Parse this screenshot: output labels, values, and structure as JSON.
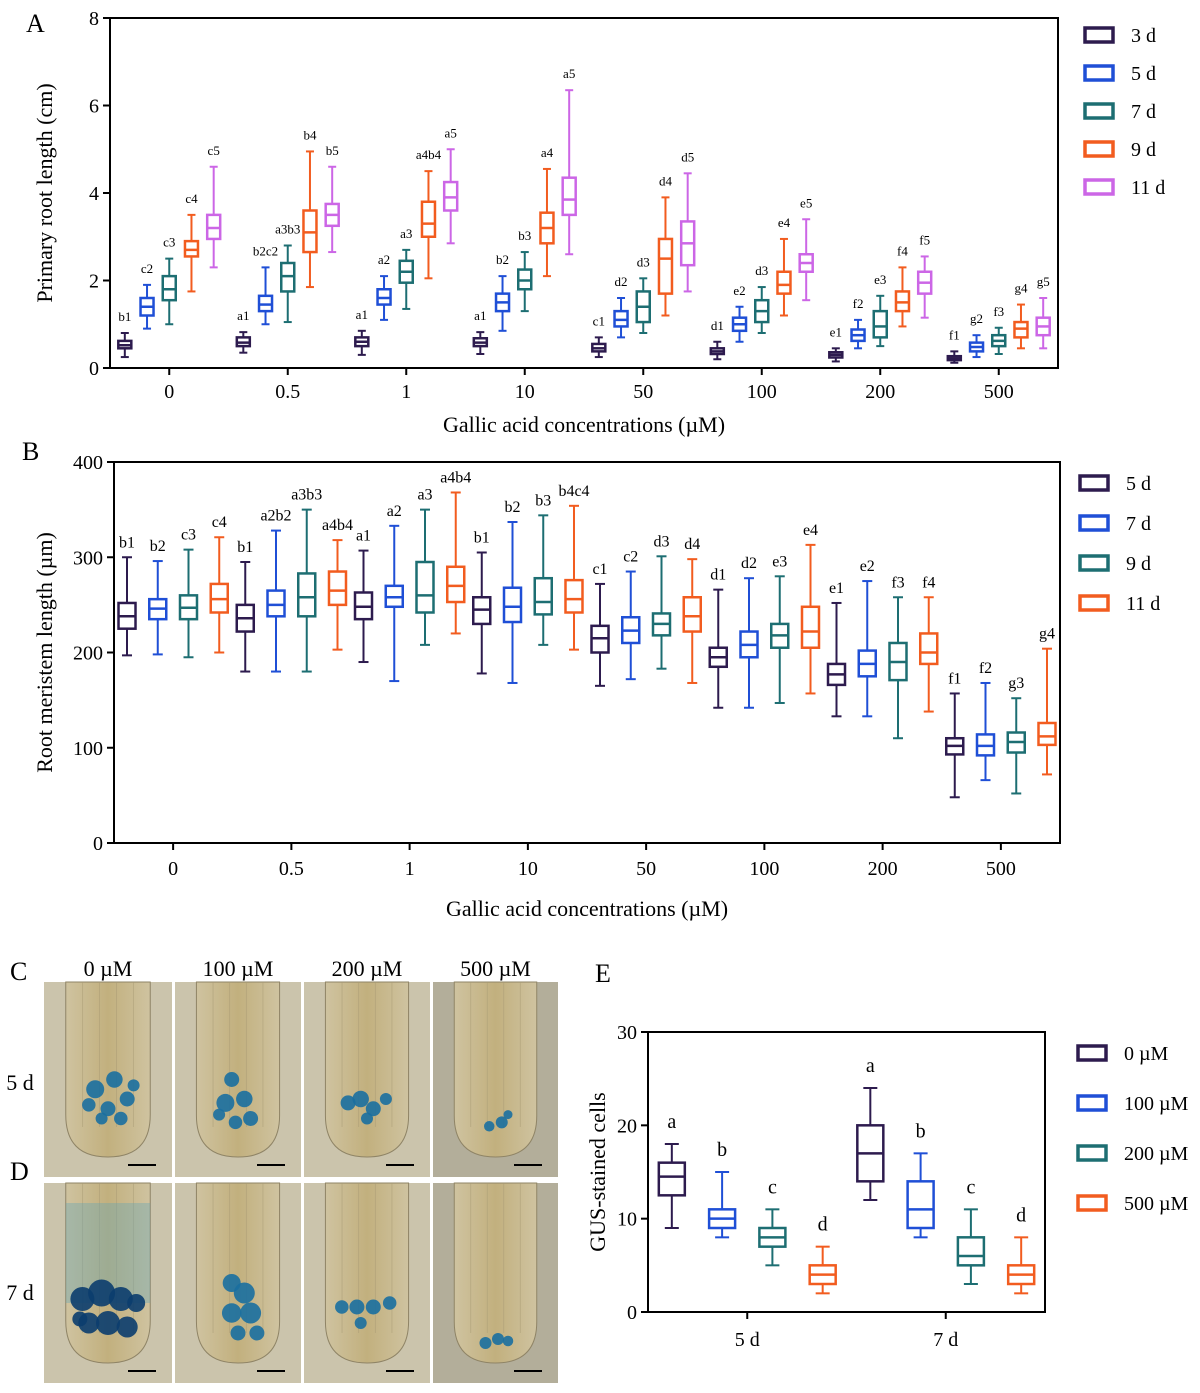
{
  "chart_data": [
    {
      "panel": "A",
      "type": "box",
      "ylabel": "Primary root length (cm)",
      "xlabel": "Gallic acid concentrations (µM)",
      "ylim": [
        0,
        8
      ],
      "yticks": [
        "0",
        "2",
        "4",
        "6",
        "8"
      ],
      "categories": [
        "0",
        "0.5",
        "1",
        "10",
        "50",
        "100",
        "200",
        "500"
      ],
      "series": [
        {
          "name": "3 d",
          "color": "#2d1b4e",
          "boxes": [
            {
              "min": 0.25,
              "q1": 0.45,
              "med": 0.52,
              "q3": 0.62,
              "max": 0.8,
              "sig": "b1"
            },
            {
              "min": 0.35,
              "q1": 0.5,
              "med": 0.58,
              "q3": 0.7,
              "max": 0.82,
              "sig": "a1"
            },
            {
              "min": 0.3,
              "q1": 0.5,
              "med": 0.6,
              "q3": 0.7,
              "max": 0.85,
              "sig": "a1"
            },
            {
              "min": 0.32,
              "q1": 0.5,
              "med": 0.58,
              "q3": 0.68,
              "max": 0.82,
              "sig": "a1"
            },
            {
              "min": 0.25,
              "q1": 0.38,
              "med": 0.45,
              "q3": 0.55,
              "max": 0.7,
              "sig": "c1"
            },
            {
              "min": 0.2,
              "q1": 0.32,
              "med": 0.38,
              "q3": 0.45,
              "max": 0.6,
              "sig": "d1"
            },
            {
              "min": 0.15,
              "q1": 0.24,
              "med": 0.3,
              "q3": 0.36,
              "max": 0.45,
              "sig": "e1"
            },
            {
              "min": 0.12,
              "q1": 0.18,
              "med": 0.22,
              "q3": 0.27,
              "max": 0.38,
              "sig": "f1"
            }
          ]
        },
        {
          "name": "5 d",
          "color": "#1f4fd6",
          "boxes": [
            {
              "min": 0.9,
              "q1": 1.2,
              "med": 1.4,
              "q3": 1.6,
              "max": 1.9,
              "sig": "c2"
            },
            {
              "min": 1.0,
              "q1": 1.3,
              "med": 1.45,
              "q3": 1.65,
              "max": 2.3,
              "sig": "b2c2"
            },
            {
              "min": 1.1,
              "q1": 1.45,
              "med": 1.6,
              "q3": 1.8,
              "max": 2.1,
              "sig": "a2"
            },
            {
              "min": 0.85,
              "q1": 1.3,
              "med": 1.5,
              "q3": 1.7,
              "max": 2.1,
              "sig": "b2"
            },
            {
              "min": 0.7,
              "q1": 0.95,
              "med": 1.1,
              "q3": 1.3,
              "max": 1.6,
              "sig": "d2"
            },
            {
              "min": 0.6,
              "q1": 0.85,
              "med": 1.0,
              "q3": 1.15,
              "max": 1.4,
              "sig": "e2"
            },
            {
              "min": 0.45,
              "q1": 0.62,
              "med": 0.75,
              "q3": 0.88,
              "max": 1.1,
              "sig": "f2"
            },
            {
              "min": 0.25,
              "q1": 0.38,
              "med": 0.48,
              "q3": 0.58,
              "max": 0.75,
              "sig": "g2"
            }
          ]
        },
        {
          "name": "7 d",
          "color": "#1d6e72",
          "boxes": [
            {
              "min": 1.0,
              "q1": 1.55,
              "med": 1.8,
              "q3": 2.1,
              "max": 2.5,
              "sig": "c3"
            },
            {
              "min": 1.05,
              "q1": 1.75,
              "med": 2.1,
              "q3": 2.4,
              "max": 2.8,
              "sig": "a3b3"
            },
            {
              "min": 1.35,
              "q1": 1.95,
              "med": 2.2,
              "q3": 2.45,
              "max": 2.7,
              "sig": "a3"
            },
            {
              "min": 1.3,
              "q1": 1.8,
              "med": 2.0,
              "q3": 2.25,
              "max": 2.65,
              "sig": "b3"
            },
            {
              "min": 0.8,
              "q1": 1.05,
              "med": 1.4,
              "q3": 1.75,
              "max": 2.05,
              "sig": "d3"
            },
            {
              "min": 0.8,
              "q1": 1.05,
              "med": 1.3,
              "q3": 1.55,
              "max": 1.85,
              "sig": "d3"
            },
            {
              "min": 0.5,
              "q1": 0.7,
              "med": 0.95,
              "q3": 1.3,
              "max": 1.65,
              "sig": "e3"
            },
            {
              "min": 0.32,
              "q1": 0.5,
              "med": 0.62,
              "q3": 0.75,
              "max": 0.92,
              "sig": "f3"
            }
          ]
        },
        {
          "name": "9 d",
          "color": "#f25c1f",
          "boxes": [
            {
              "min": 1.75,
              "q1": 2.55,
              "med": 2.7,
              "q3": 2.9,
              "max": 3.5,
              "sig": "c4"
            },
            {
              "min": 1.85,
              "q1": 2.65,
              "med": 3.1,
              "q3": 3.6,
              "max": 4.95,
              "sig": "b4"
            },
            {
              "min": 2.05,
              "q1": 3.0,
              "med": 3.3,
              "q3": 3.8,
              "max": 4.5,
              "sig": "a4b4"
            },
            {
              "min": 2.1,
              "q1": 2.85,
              "med": 3.2,
              "q3": 3.55,
              "max": 4.55,
              "sig": "a4"
            },
            {
              "min": 1.2,
              "q1": 1.7,
              "med": 2.5,
              "q3": 2.95,
              "max": 3.9,
              "sig": "d4"
            },
            {
              "min": 1.2,
              "q1": 1.7,
              "med": 1.9,
              "q3": 2.2,
              "max": 2.95,
              "sig": "e4"
            },
            {
              "min": 0.95,
              "q1": 1.3,
              "med": 1.5,
              "q3": 1.75,
              "max": 2.3,
              "sig": "f4"
            },
            {
              "min": 0.45,
              "q1": 0.7,
              "med": 0.9,
              "q3": 1.05,
              "max": 1.45,
              "sig": "g4"
            }
          ]
        },
        {
          "name": "11 d",
          "color": "#cc66e6",
          "boxes": [
            {
              "min": 2.3,
              "q1": 2.95,
              "med": 3.2,
              "q3": 3.5,
              "max": 4.6,
              "sig": "c5"
            },
            {
              "min": 2.65,
              "q1": 3.25,
              "med": 3.5,
              "q3": 3.75,
              "max": 4.6,
              "sig": "b5"
            },
            {
              "min": 2.85,
              "q1": 3.6,
              "med": 3.9,
              "q3": 4.25,
              "max": 5.0,
              "sig": "a5"
            },
            {
              "min": 2.6,
              "q1": 3.5,
              "med": 3.85,
              "q3": 4.35,
              "max": 6.35,
              "sig": "a5"
            },
            {
              "min": 1.75,
              "q1": 2.35,
              "med": 2.85,
              "q3": 3.35,
              "max": 4.45,
              "sig": "d5"
            },
            {
              "min": 1.55,
              "q1": 2.2,
              "med": 2.4,
              "q3": 2.6,
              "max": 3.4,
              "sig": "e5"
            },
            {
              "min": 1.15,
              "q1": 1.7,
              "med": 1.95,
              "q3": 2.2,
              "max": 2.55,
              "sig": "f5"
            },
            {
              "min": 0.45,
              "q1": 0.75,
              "med": 0.95,
              "q3": 1.15,
              "max": 1.6,
              "sig": "g5"
            }
          ]
        }
      ]
    },
    {
      "panel": "B",
      "type": "box",
      "ylabel": "Root meristem length (µm)",
      "xlabel": "Gallic acid concentrations (µM)",
      "ylim": [
        0,
        400
      ],
      "yticks": [
        "0",
        "100",
        "200",
        "300",
        "400"
      ],
      "categories": [
        "0",
        "0.5",
        "1",
        "10",
        "50",
        "100",
        "200",
        "500"
      ],
      "series": [
        {
          "name": "5 d",
          "color": "#2d1b4e",
          "boxes": [
            {
              "min": 197,
              "q1": 225,
              "med": 238,
              "q3": 252,
              "max": 300,
              "sig": "b1"
            },
            {
              "min": 180,
              "q1": 222,
              "med": 236,
              "q3": 250,
              "max": 295,
              "sig": "b1"
            },
            {
              "min": 190,
              "q1": 235,
              "med": 248,
              "q3": 263,
              "max": 307,
              "sig": "a1"
            },
            {
              "min": 178,
              "q1": 230,
              "med": 245,
              "q3": 258,
              "max": 305,
              "sig": "b1"
            },
            {
              "min": 165,
              "q1": 200,
              "med": 215,
              "q3": 228,
              "max": 272,
              "sig": "c1"
            },
            {
              "min": 142,
              "q1": 185,
              "med": 195,
              "q3": 205,
              "max": 266,
              "sig": "d1"
            },
            {
              "min": 133,
              "q1": 166,
              "med": 177,
              "q3": 188,
              "max": 252,
              "sig": "e1"
            },
            {
              "min": 48,
              "q1": 93,
              "med": 102,
              "q3": 110,
              "max": 157,
              "sig": "f1"
            }
          ]
        },
        {
          "name": "7 d",
          "color": "#1f4fd6",
          "boxes": [
            {
              "min": 198,
              "q1": 235,
              "med": 246,
              "q3": 256,
              "max": 296,
              "sig": "b2"
            },
            {
              "min": 180,
              "q1": 238,
              "med": 250,
              "q3": 265,
              "max": 328,
              "sig": "a2b2"
            },
            {
              "min": 170,
              "q1": 248,
              "med": 258,
              "q3": 270,
              "max": 333,
              "sig": "a2"
            },
            {
              "min": 168,
              "q1": 232,
              "med": 248,
              "q3": 268,
              "max": 337,
              "sig": "b2"
            },
            {
              "min": 172,
              "q1": 210,
              "med": 223,
              "q3": 237,
              "max": 285,
              "sig": "c2"
            },
            {
              "min": 142,
              "q1": 195,
              "med": 208,
              "q3": 222,
              "max": 278,
              "sig": "d2"
            },
            {
              "min": 133,
              "q1": 175,
              "med": 188,
              "q3": 202,
              "max": 275,
              "sig": "e2"
            },
            {
              "min": 66,
              "q1": 92,
              "med": 102,
              "q3": 114,
              "max": 168,
              "sig": "f2"
            }
          ]
        },
        {
          "name": "9 d",
          "color": "#1d6e72",
          "boxes": [
            {
              "min": 195,
              "q1": 235,
              "med": 247,
              "q3": 260,
              "max": 308,
              "sig": "c3"
            },
            {
              "min": 180,
              "q1": 238,
              "med": 258,
              "q3": 283,
              "max": 350,
              "sig": "a3b3"
            },
            {
              "min": 208,
              "q1": 242,
              "med": 260,
              "q3": 295,
              "max": 350,
              "sig": "a3"
            },
            {
              "min": 208,
              "q1": 240,
              "med": 253,
              "q3": 278,
              "max": 344,
              "sig": "b3"
            },
            {
              "min": 183,
              "q1": 218,
              "med": 230,
              "q3": 241,
              "max": 301,
              "sig": "d3"
            },
            {
              "min": 147,
              "q1": 205,
              "med": 218,
              "q3": 230,
              "max": 280,
              "sig": "e3"
            },
            {
              "min": 110,
              "q1": 171,
              "med": 190,
              "q3": 210,
              "max": 258,
              "sig": "f3"
            },
            {
              "min": 52,
              "q1": 95,
              "med": 106,
              "q3": 116,
              "max": 152,
              "sig": "g3"
            }
          ]
        },
        {
          "name": "11 d",
          "color": "#f25c1f",
          "boxes": [
            {
              "min": 200,
              "q1": 242,
              "med": 256,
              "q3": 272,
              "max": 321,
              "sig": "c4"
            },
            {
              "min": 203,
              "q1": 250,
              "med": 265,
              "q3": 285,
              "max": 318,
              "sig": "a4b4"
            },
            {
              "min": 220,
              "q1": 253,
              "med": 270,
              "q3": 290,
              "max": 368,
              "sig": "a4b4"
            },
            {
              "min": 203,
              "q1": 242,
              "med": 256,
              "q3": 276,
              "max": 354,
              "sig": "b4c4"
            },
            {
              "min": 168,
              "q1": 222,
              "med": 238,
              "q3": 258,
              "max": 298,
              "sig": "d4"
            },
            {
              "min": 157,
              "q1": 205,
              "med": 222,
              "q3": 248,
              "max": 313,
              "sig": "e4"
            },
            {
              "min": 138,
              "q1": 188,
              "med": 200,
              "q3": 220,
              "max": 258,
              "sig": "f4"
            },
            {
              "min": 72,
              "q1": 103,
              "med": 112,
              "q3": 126,
              "max": 204,
              "sig": "g4"
            }
          ]
        }
      ]
    },
    {
      "panel": "E",
      "type": "box",
      "ylabel": "GUS-stained cells",
      "xlabel": "",
      "ylim": [
        0,
        30
      ],
      "yticks": [
        "0",
        "10",
        "20",
        "30"
      ],
      "categories": [
        "5 d",
        "7 d"
      ],
      "series": [
        {
          "name": "0 µM",
          "color": "#2d1b4e",
          "boxes": [
            {
              "min": 9,
              "q1": 12.5,
              "med": 14.5,
              "q3": 16,
              "max": 18,
              "sig": "a"
            },
            {
              "min": 12,
              "q1": 14,
              "med": 17,
              "q3": 20,
              "max": 24,
              "sig": "a"
            }
          ]
        },
        {
          "name": "100 µM",
          "color": "#1f4fd6",
          "boxes": [
            {
              "min": 8,
              "q1": 9,
              "med": 10,
              "q3": 11,
              "max": 15,
              "sig": "b"
            },
            {
              "min": 8,
              "q1": 9,
              "med": 11,
              "q3": 14,
              "max": 17,
              "sig": "b"
            }
          ]
        },
        {
          "name": "200 µM",
          "color": "#1d6e72",
          "boxes": [
            {
              "min": 5,
              "q1": 7,
              "med": 8,
              "q3": 9,
              "max": 11,
              "sig": "c"
            },
            {
              "min": 3,
              "q1": 5,
              "med": 6,
              "q3": 8,
              "max": 11,
              "sig": "c"
            }
          ]
        },
        {
          "name": "500 µM",
          "color": "#f25c1f",
          "boxes": [
            {
              "min": 2,
              "q1": 3,
              "med": 4,
              "q3": 5,
              "max": 7,
              "sig": "d"
            },
            {
              "min": 2,
              "q1": 3,
              "med": 4,
              "q3": 5,
              "max": 8,
              "sig": "d"
            }
          ]
        }
      ]
    }
  ],
  "panels": {
    "a_letter": "A",
    "b_letter": "B",
    "c_letter": "C",
    "d_letter": "D",
    "e_letter": "E"
  },
  "photos": {
    "columns": [
      "0 µM",
      "100 µM",
      "200 µM",
      "500 µM"
    ],
    "rows": [
      "5 d",
      "7 d"
    ]
  }
}
